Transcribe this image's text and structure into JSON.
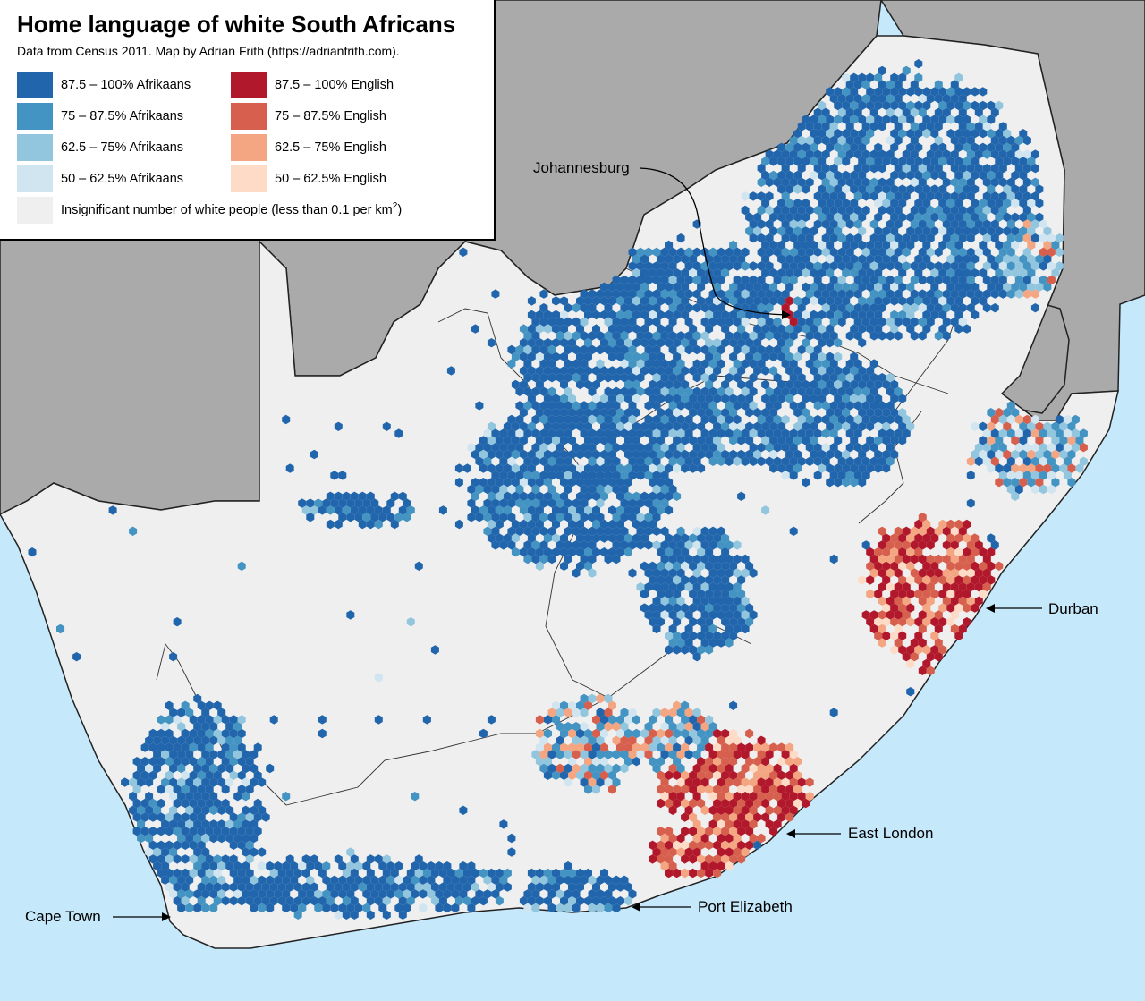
{
  "title": "Home language of white South Africans",
  "subtitle": "Data from Census 2011. Map by Adrian Frith (https://adrianfrith.com).",
  "legend": {
    "afrikaans": [
      {
        "label": "87.5 – 100% Afrikaans",
        "color": "#2166ac"
      },
      {
        "label": "75 – 87.5% Afrikaans",
        "color": "#4393c3"
      },
      {
        "label": "62.5 – 75% Afrikaans",
        "color": "#92c5de"
      },
      {
        "label": "50 – 62.5% Afrikaans",
        "color": "#d1e5f0"
      }
    ],
    "english": [
      {
        "label": "87.5 – 100% English",
        "color": "#b2182b"
      },
      {
        "label": "75 – 87.5% English",
        "color": "#d6604d"
      },
      {
        "label": "62.5 – 75% English",
        "color": "#f4a582"
      },
      {
        "label": "50 – 62.5% English",
        "color": "#fddbc7"
      }
    ],
    "insignificant": {
      "label_main": "Insignificant number of white people (less than 0.1 per km",
      "label_sup": "2",
      "label_end": ")",
      "color": "#efefef"
    }
  },
  "cities": {
    "johannesburg": "Johannesburg",
    "durban": "Durban",
    "east_london": "East London",
    "port_elizabeth": "Port Elizabeth",
    "cape_town": "Cape Town"
  },
  "colors": {
    "ocean": "#c6e8fb",
    "neighbour_countries": "#aaaaaa",
    "land_no_data": "#efefef"
  }
}
